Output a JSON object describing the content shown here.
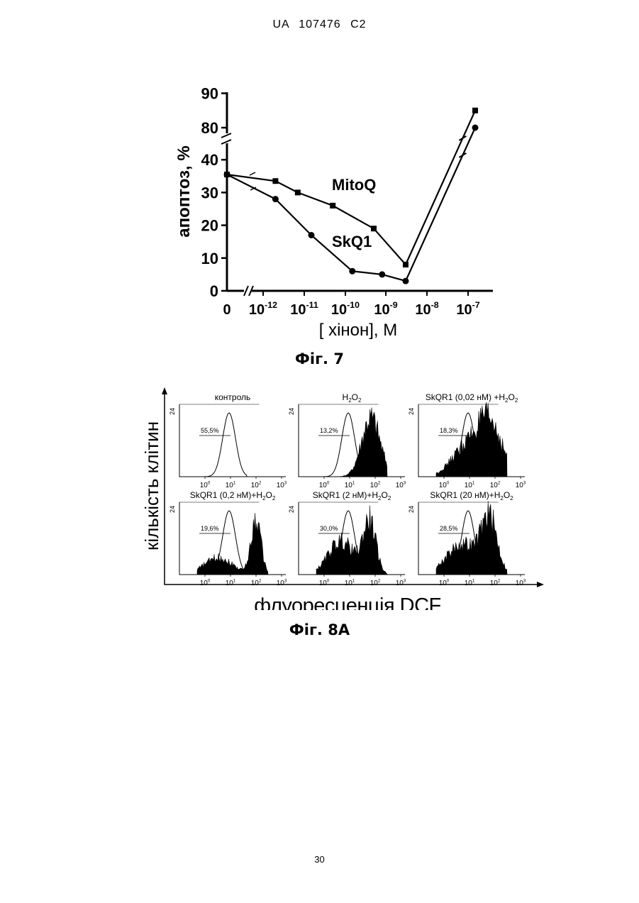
{
  "header": "UA   107476   C2",
  "page_number": "30",
  "figure7": {
    "caption": "Фіг. 7",
    "ylabel": "апоптоз, %",
    "xlabel": "[ хінон], М",
    "yticks": [
      "0",
      "10",
      "20",
      "30",
      "40",
      "80",
      "90"
    ],
    "xticks": [
      {
        "base": "0",
        "exp": ""
      },
      {
        "base": "10",
        "exp": "-12"
      },
      {
        "base": "10",
        "exp": "-11"
      },
      {
        "base": "10",
        "exp": "-10"
      },
      {
        "base": "10",
        "exp": "-9"
      },
      {
        "base": "10",
        "exp": "-8"
      },
      {
        "base": "10",
        "exp": "-7"
      }
    ],
    "chart_data": {
      "type": "line",
      "x_axis": "log concentration with axis break between 0 and 10^-12",
      "y_axis": "broken axis: 0–40 and 80–90",
      "series": [
        {
          "name": "MitoQ",
          "marker": "square",
          "points": [
            [
              "0",
              35.5
            ],
            [
              "2e-12",
              33.5
            ],
            [
              "7e-12",
              30
            ],
            [
              "5e-11",
              26
            ],
            [
              "5e-10",
              19
            ],
            [
              "3e-9",
              8
            ],
            [
              "7e-8",
              85
            ]
          ]
        },
        {
          "name": "SkQ1",
          "marker": "circle",
          "points": [
            [
              "0",
              35.5
            ],
            [
              "2e-12",
              28
            ],
            [
              "1.5e-11",
              17
            ],
            [
              "1.5e-10",
              6
            ],
            [
              "8e-10",
              5
            ],
            [
              "3e-9",
              3
            ],
            [
              "7e-8",
              80
            ]
          ]
        }
      ]
    }
  },
  "figure8": {
    "caption": "Фіг. 8А",
    "ylabel": "кількість клітин",
    "xlabel": "флуоресценція DCF",
    "ytick": "24",
    "panels": [
      {
        "title": "контроль",
        "percent": "55,5%"
      },
      {
        "title": "H2O2",
        "percent": "13,2%"
      },
      {
        "title": "SkQR1 (0,02 нМ) +H2O2",
        "percent": "18,3%"
      },
      {
        "title": "SkQR1 (0,2 нМ)+H2O2",
        "percent": "19,6%"
      },
      {
        "title": "SkQR1 (2 нМ)+H2O2",
        "percent": "30,0%"
      },
      {
        "title": "SkQR1 (20 нМ)+H2O2",
        "percent": "28,5%"
      }
    ],
    "xticks": [
      {
        "base": "10",
        "exp": "0"
      },
      {
        "base": "10",
        "exp": "1"
      },
      {
        "base": "10",
        "exp": "2"
      },
      {
        "base": "10",
        "exp": "3"
      }
    ]
  }
}
